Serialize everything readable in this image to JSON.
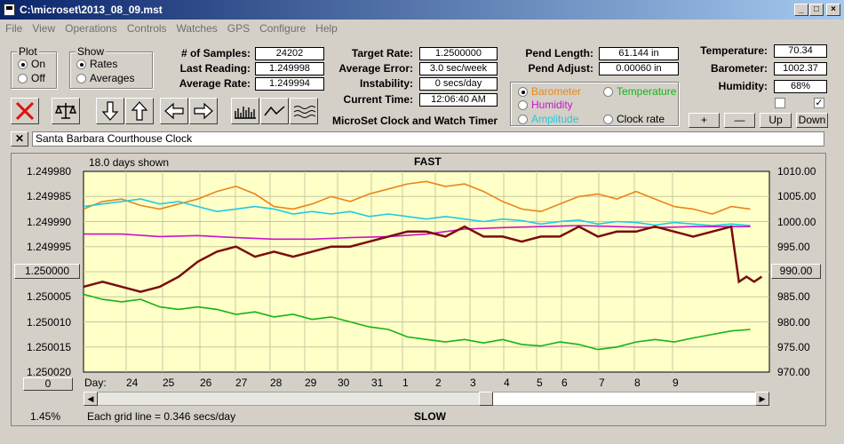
{
  "window": {
    "title": "C:\\microset\\2013_08_09.mst"
  },
  "menu": [
    "File",
    "View",
    "Operations",
    "Controls",
    "Watches",
    "GPS",
    "Configure",
    "Help"
  ],
  "plot_group": {
    "label": "Plot",
    "options": [
      "On",
      "Off"
    ],
    "selected": "On"
  },
  "show_group": {
    "label": "Show",
    "options": [
      "Rates",
      "Averages"
    ],
    "selected": "Rates"
  },
  "stats": {
    "samples_label": "# of Samples:",
    "samples": "24202",
    "last_label": "Last Reading:",
    "last": "1.249998",
    "avg_label": "Average Rate:",
    "avg": "1.249994"
  },
  "rates": {
    "target_label": "Target Rate:",
    "target": "1.2500000",
    "error_label": "Average Error:",
    "error": "3.0 sec/week",
    "instability_label": "Instability:",
    "instability": "0 secs/day",
    "time_label": "Current Time:",
    "time": "12:06:40 AM"
  },
  "app_name": "MicroSet Clock and Watch Timer",
  "pendulum": {
    "length_label": "Pend Length:",
    "length": "61.144 in",
    "adjust_label": "Pend Adjust:",
    "adjust": "0.00060 in"
  },
  "sensor_options": [
    {
      "label": "Barometer",
      "color": "#e8861a",
      "selected": true
    },
    {
      "label": "Temperature",
      "color": "#14b414",
      "selected": false
    },
    {
      "label": "Humidity",
      "color": "#c814c8",
      "selected": false
    },
    {
      "label": "Amplitude",
      "color": "#1ecce0",
      "selected": false
    },
    {
      "label": "Clock rate",
      "color": "#000000",
      "selected": false
    }
  ],
  "environment": {
    "temp_label": "Temperature:",
    "temp": "70.34",
    "baro_label": "Barometer:",
    "baro": "1002.37",
    "humid_label": "Humidity:",
    "humid": "68%"
  },
  "scale_buttons": [
    "+",
    "—",
    "Up",
    "Down"
  ],
  "checkboxes": [
    false,
    true
  ],
  "clock_name": "Santa Barbara Courthouse Clock",
  "chart_data": {
    "type": "line",
    "title": "FAST",
    "bottom_label": "SLOW",
    "days_shown": "18.0 days shown",
    "grid_note": "Each grid line = 0.346 secs/day",
    "percent": "1.45%",
    "left_ticks": [
      "1.249980",
      "1.249985",
      "1.249990",
      "1.249995",
      "1.250000",
      "1.250005",
      "1.250010",
      "1.250015",
      "1.250020"
    ],
    "left_center_button": "1.250000",
    "right_ticks": [
      "1010.00",
      "1005.00",
      "1000.00",
      "995.00",
      "990.00",
      "985.00",
      "980.00",
      "975.00",
      "970.00"
    ],
    "right_center_button": "990.00",
    "left_ylim": [
      1.24998,
      1.25002
    ],
    "right_ylim": [
      970,
      1010
    ],
    "reset_button": "0",
    "day_prefix": "Day:",
    "days": [
      "24",
      "25",
      "26",
      "27",
      "28",
      "29",
      "30",
      "31",
      "1",
      "2",
      "3",
      "4",
      "5",
      "6",
      "7",
      "8",
      "9"
    ],
    "x_range": [
      0,
      18
    ],
    "series": [
      {
        "color": "#e8861a",
        "axis": "right",
        "x": [
          0,
          0.5,
          1,
          1.5,
          2,
          2.5,
          3,
          3.5,
          4,
          4.5,
          5,
          5.5,
          6,
          6.5,
          7,
          7.5,
          8,
          8.5,
          9,
          9.5,
          10,
          10.5,
          11,
          11.5,
          12,
          12.5,
          13,
          13.5,
          14,
          14.5,
          15,
          15.5,
          16,
          16.5,
          17,
          17.5
        ],
        "y": [
          1002.5,
          1004,
          1004.5,
          1003.2,
          1002.5,
          1003.5,
          1004.5,
          1006,
          1007,
          1005.5,
          1003,
          1002.5,
          1003.5,
          1005,
          1004,
          1005.5,
          1006.5,
          1007.5,
          1008,
          1007,
          1007.5,
          1006,
          1004,
          1002.5,
          1002,
          1003.5,
          1005,
          1005.5,
          1004.5,
          1006,
          1004.5,
          1003,
          1002.5,
          1001.5,
          1003,
          1002.5
        ]
      },
      {
        "color": "#1ecce0",
        "axis": "right",
        "x": [
          0,
          0.5,
          1,
          1.5,
          2,
          2.5,
          3,
          3.5,
          4,
          4.5,
          5,
          5.5,
          6,
          6.5,
          7,
          7.5,
          8,
          8.5,
          9,
          9.5,
          10,
          10.5,
          11,
          11.5,
          12,
          12.5,
          13,
          13.5,
          14,
          14.5,
          15,
          15.5,
          16,
          16.5,
          17,
          17.5
        ],
        "y": [
          1003,
          1003.5,
          1004,
          1004.5,
          1003.5,
          1004,
          1003,
          1002,
          1002.5,
          1003,
          1002.5,
          1001.5,
          1002,
          1001.5,
          1002,
          1001,
          1001.5,
          1001,
          1000.5,
          1001,
          1000.5,
          1000,
          1000.5,
          1000.2,
          999.5,
          1000,
          1000.3,
          999.5,
          1000,
          999.8,
          999.3,
          999.8,
          999.5,
          999.2,
          999.5,
          999.2
        ]
      },
      {
        "color": "#c814c8",
        "axis": "right",
        "x": [
          0,
          1,
          2,
          3,
          4,
          5,
          6,
          7,
          8,
          9,
          10,
          11,
          12,
          13,
          14,
          15,
          16,
          17,
          17.5
        ],
        "y": [
          997.5,
          997.5,
          997,
          997.2,
          996.8,
          996.5,
          996.5,
          996.8,
          997,
          997.5,
          998.5,
          998.8,
          999,
          999.2,
          999,
          998.8,
          999,
          999,
          999
        ]
      },
      {
        "color": "#14b414",
        "axis": "right",
        "x": [
          0,
          0.5,
          1,
          1.5,
          2,
          2.5,
          3,
          3.5,
          4,
          4.5,
          5,
          5.5,
          6,
          6.5,
          7,
          7.5,
          8,
          8.5,
          9,
          9.5,
          10,
          10.5,
          11,
          11.5,
          12,
          12.5,
          13,
          13.5,
          14,
          14.5,
          15,
          15.5,
          16,
          16.5,
          17,
          17.5
        ],
        "y": [
          985.5,
          984.5,
          984,
          984.5,
          983,
          982.5,
          983,
          982.5,
          981.5,
          982,
          981,
          981.5,
          980.5,
          981,
          980,
          979,
          978.5,
          977,
          976.5,
          976,
          976.5,
          975.8,
          976.5,
          975.5,
          975.2,
          976,
          975.5,
          974.5,
          975,
          976,
          976.5,
          976,
          976.8,
          977.5,
          978.2,
          978.5
        ]
      },
      {
        "color": "#7a0c0c",
        "axis": "left",
        "x": [
          0,
          0.5,
          1,
          1.5,
          2,
          2.5,
          3,
          3.5,
          4,
          4.5,
          5,
          5.5,
          6,
          6.5,
          7,
          7.5,
          8,
          8.5,
          9,
          9.5,
          10,
          10.5,
          11,
          11.5,
          12,
          12.5,
          13,
          13.5,
          14,
          14.5,
          15,
          15.5,
          16,
          16.5,
          17,
          17.2,
          17.4,
          17.6,
          17.8
        ],
        "y": [
          1.250003,
          1.250002,
          1.250003,
          1.250004,
          1.250003,
          1.250001,
          1.249998,
          1.249996,
          1.249995,
          1.249997,
          1.249996,
          1.249997,
          1.249996,
          1.249995,
          1.249995,
          1.249994,
          1.249993,
          1.249992,
          1.249992,
          1.249993,
          1.249991,
          1.249993,
          1.249993,
          1.249994,
          1.249993,
          1.249993,
          1.249991,
          1.249993,
          1.249992,
          1.249992,
          1.249991,
          1.249992,
          1.249993,
          1.249992,
          1.249991,
          1.250002,
          1.250001,
          1.250002,
          1.250001
        ]
      }
    ]
  }
}
